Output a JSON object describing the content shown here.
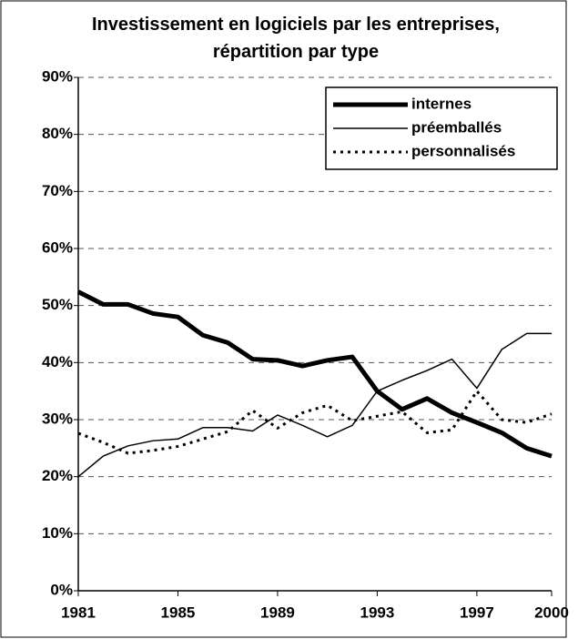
{
  "chart_data": {
    "type": "line",
    "title": "Investissement en logiciels par les entreprises, répartition par type",
    "x": [
      1981,
      1982,
      1983,
      1984,
      1985,
      1986,
      1987,
      1988,
      1989,
      1990,
      1991,
      1992,
      1993,
      1994,
      1995,
      1996,
      1997,
      1998,
      1999,
      2000
    ],
    "xlim": [
      1981,
      2000
    ],
    "xticks": [
      1981,
      1985,
      1989,
      1993,
      1997,
      2000
    ],
    "ylim": [
      0,
      90
    ],
    "yticks": [
      {
        "value": 0,
        "label": "0%"
      },
      {
        "value": 10,
        "label": "10%"
      },
      {
        "value": 20,
        "label": "20%"
      },
      {
        "value": 30,
        "label": "30%"
      },
      {
        "value": 40,
        "label": "40%"
      },
      {
        "value": 50,
        "label": "50%"
      },
      {
        "value": 60,
        "label": "60%"
      },
      {
        "value": 70,
        "label": "70%"
      },
      {
        "value": 80,
        "label": "80%"
      },
      {
        "value": 90,
        "label": "90%"
      }
    ],
    "grid": true,
    "legend": "top-right",
    "series": [
      {
        "name": "internes",
        "color": "#000000",
        "width": 5,
        "dash": "none",
        "values": [
          52.4,
          50.2,
          50.2,
          48.6,
          48,
          44.8,
          43.5,
          40.6,
          40.4,
          39.4,
          40.4,
          41,
          35,
          31.8,
          33.7,
          31.2,
          29.5,
          27.7,
          25,
          23.6
        ]
      },
      {
        "name": "préemballés",
        "color": "#000000",
        "width": 1.5,
        "dash": "none",
        "values": [
          20,
          23.6,
          25.4,
          26.3,
          26.6,
          28.6,
          28.6,
          28,
          30.8,
          29,
          27,
          29,
          35,
          36.9,
          38.6,
          40.6,
          35.5,
          42.3,
          45.1,
          45.1
        ]
      },
      {
        "name": "personnalisés",
        "color": "#000000",
        "width": 3,
        "dash": "3 5",
        "values": [
          27.6,
          26,
          24.1,
          24.6,
          25.3,
          26.6,
          27.9,
          31.6,
          28.5,
          31.2,
          32.5,
          29.8,
          30.6,
          31.4,
          27.7,
          28.2,
          35,
          30,
          29.5,
          31
        ]
      }
    ]
  }
}
